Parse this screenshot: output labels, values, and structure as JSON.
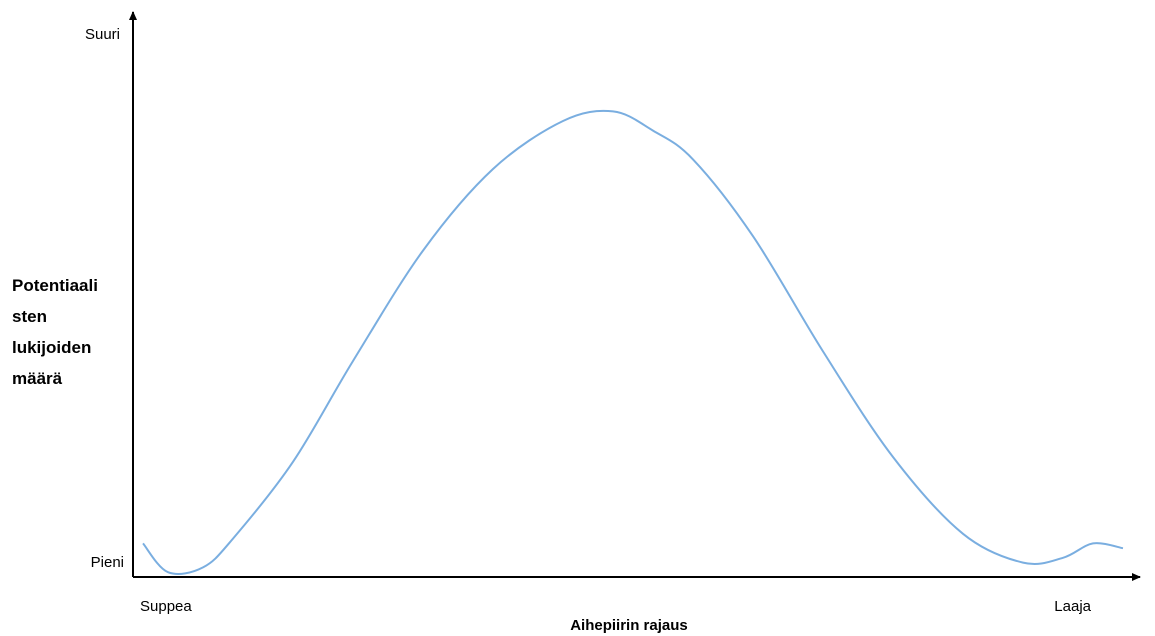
{
  "chart_data": {
    "type": "line",
    "xlabel": "Aihepiirin rajaus",
    "ylabel": "Potentiaali\nsten\nlukijoiden\nmäärä",
    "x_tick_labels": [
      "Suppea",
      "Laaja"
    ],
    "y_tick_labels": [
      "Pieni",
      "Suuri"
    ],
    "xlim": [
      0,
      1
    ],
    "ylim": [
      0,
      1
    ],
    "grid": false,
    "line_color": "#7aaee0",
    "series": [
      {
        "x": [
          0.01,
          0.035,
          0.07,
          0.1,
          0.16,
          0.22,
          0.29,
          0.36,
          0.43,
          0.48,
          0.52,
          0.56,
          0.62,
          0.69,
          0.76,
          0.83,
          0.89,
          0.93,
          0.96,
          0.99
        ],
        "values": [
          0.07,
          0.01,
          0.02,
          0.08,
          0.24,
          0.45,
          0.68,
          0.85,
          0.95,
          0.97,
          0.93,
          0.87,
          0.71,
          0.47,
          0.25,
          0.09,
          0.03,
          0.04,
          0.07,
          0.06
        ]
      }
    ]
  }
}
